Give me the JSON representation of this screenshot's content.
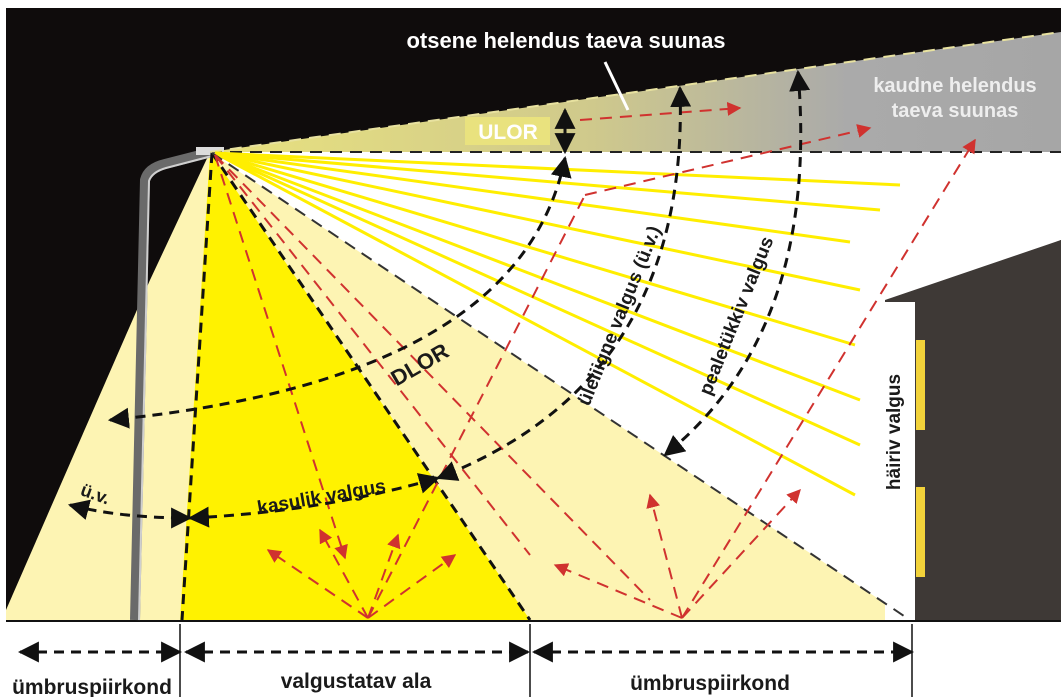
{
  "labels": {
    "direct_sky_glow": "otsene helendus taeva suunas",
    "indirect_sky_glow_line1": "kaudne helendus",
    "indirect_sky_glow_line2": "taeva suunas",
    "ulor": "ULOR",
    "dlor": "DLOR",
    "spill_light": "üleliigne valgus (ü.v.)",
    "glare": "pealetükkiv valgus",
    "intrusive_light": "häiriv valgus",
    "useful_light": "kasulik valgus",
    "spill_short": "ü.v.",
    "surroundings_left": "ümbruspiirkond",
    "lit_area": "valgustatav ala",
    "surroundings_right": "ümbruspiirkond"
  },
  "colors": {
    "night_sky": "#0f0c0c",
    "useful_yellow": "#fff200",
    "pale_yellow": "#fdf4b3",
    "ulor_yellow": "#e6e08a",
    "sky_glow_gray": "#a9a9a9",
    "building": "#3e3936",
    "window": "#f2d23a",
    "red_rays": "#d0322f",
    "yellow_rays": "#ffee00"
  }
}
